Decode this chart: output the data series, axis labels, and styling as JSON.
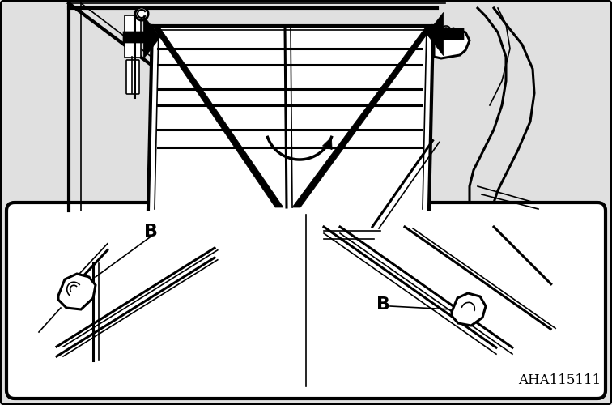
{
  "bg_color": "#e8e8e8",
  "fig_width": 7.56,
  "fig_height": 5.0,
  "dpi": 100,
  "watermark_text": "AHA115111",
  "watermark_fontsize": 12,
  "label_B_fontsize": 16,
  "label_B_fontweight": "bold"
}
